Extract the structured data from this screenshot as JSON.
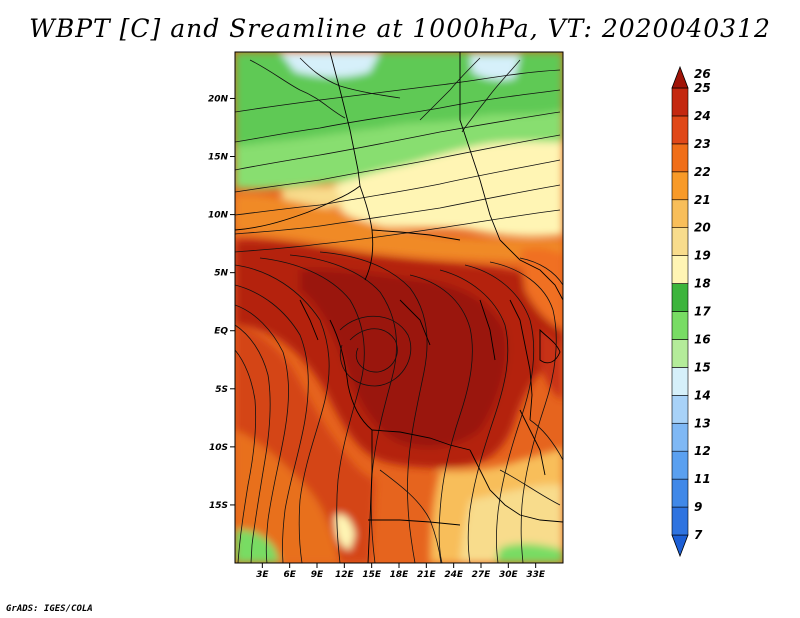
{
  "title": "WBPT [C] and Sreamline at 1000hPa, VT: 2020040312",
  "credit": "GrADS: IGES/COLA",
  "map": {
    "lon_range": [
      0,
      36
    ],
    "lat_range": [
      -20,
      24
    ],
    "lat_ticks": [
      {
        "value": 20,
        "label": "20N"
      },
      {
        "value": 15,
        "label": "15N"
      },
      {
        "value": 10,
        "label": "10N"
      },
      {
        "value": 5,
        "label": "5N"
      },
      {
        "value": 0,
        "label": "EQ"
      },
      {
        "value": -5,
        "label": "5S"
      },
      {
        "value": -10,
        "label": "10S"
      },
      {
        "value": -15,
        "label": "15S"
      }
    ],
    "lon_ticks": [
      {
        "value": 3,
        "label": "3E"
      },
      {
        "value": 6,
        "label": "6E"
      },
      {
        "value": 9,
        "label": "9E"
      },
      {
        "value": 12,
        "label": "12E"
      },
      {
        "value": 15,
        "label": "15E"
      },
      {
        "value": 18,
        "label": "18E"
      },
      {
        "value": 21,
        "label": "21E"
      },
      {
        "value": 24,
        "label": "24E"
      },
      {
        "value": 27,
        "label": "27E"
      },
      {
        "value": 30,
        "label": "30E"
      },
      {
        "value": 33,
        "label": "33E"
      }
    ]
  },
  "colorbar": {
    "levels": [
      {
        "label": "7",
        "color": "#1c5fd6"
      },
      {
        "label": "9",
        "color": "#2e73e0"
      },
      {
        "label": "11",
        "color": "#4088e8"
      },
      {
        "label": "12",
        "color": "#5aa0f0"
      },
      {
        "label": "13",
        "color": "#7fb8f5"
      },
      {
        "label": "14",
        "color": "#a8d2f8"
      },
      {
        "label": "15",
        "color": "#d6f0fa"
      },
      {
        "label": "16",
        "color": "#b4ec9a"
      },
      {
        "label": "17",
        "color": "#78dc64"
      },
      {
        "label": "18",
        "color": "#3cb43c"
      },
      {
        "label": "19",
        "color": "#fff5b4"
      },
      {
        "label": "20",
        "color": "#f8dc8c"
      },
      {
        "label": "21",
        "color": "#f8be5a"
      },
      {
        "label": "22",
        "color": "#f89a28"
      },
      {
        "label": "23",
        "color": "#f06e18"
      },
      {
        "label": "24",
        "color": "#e04818"
      },
      {
        "label": "25",
        "color": "#c42810"
      },
      {
        "label": "26",
        "color": "#a01408"
      }
    ]
  }
}
